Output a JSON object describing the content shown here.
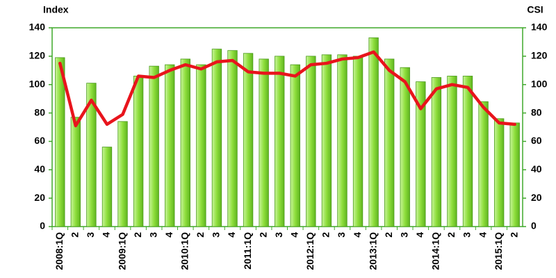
{
  "chart_data": {
    "type": "bar_line",
    "ylabel": "Index",
    "y2label": "CSI",
    "categories": [
      "2008:1Q",
      "2",
      "3",
      "4",
      "2009:1Q",
      "2",
      "3",
      "4",
      "2010:1Q",
      "2",
      "3",
      "4",
      "2011:1Q",
      "2",
      "3",
      "4",
      "2012:1Q",
      "2",
      "3",
      "4",
      "2013:1Q",
      "2",
      "3",
      "4",
      "2014:1Q",
      "2",
      "3",
      "4",
      "2015:1Q",
      "2"
    ],
    "series": [
      {
        "name": "Index",
        "type": "bar",
        "color": "#8ede3c",
        "values": [
          119,
          77,
          101,
          56,
          74,
          106,
          113,
          114,
          118,
          114,
          125,
          124,
          122,
          118,
          120,
          114,
          120,
          121,
          121,
          120,
          133,
          118,
          112,
          102,
          105,
          106,
          106,
          88,
          76,
          73
        ]
      },
      {
        "name": "CSI",
        "type": "line",
        "axis": "y2",
        "color": "#e8141c",
        "values": [
          115,
          71,
          89,
          72,
          79,
          106,
          105,
          110,
          114,
          111,
          116,
          117,
          109,
          108,
          108,
          106,
          114,
          115,
          118,
          119,
          123,
          110,
          102,
          83,
          97,
          100,
          98,
          84,
          73,
          72
        ]
      }
    ],
    "ylim": [
      0,
      140
    ],
    "yticks": [
      0,
      20,
      40,
      60,
      80,
      100,
      120,
      140
    ],
    "y2lim": [
      0,
      140
    ],
    "y2ticks": [
      0,
      20,
      40,
      60,
      80,
      100,
      120,
      140
    ]
  }
}
